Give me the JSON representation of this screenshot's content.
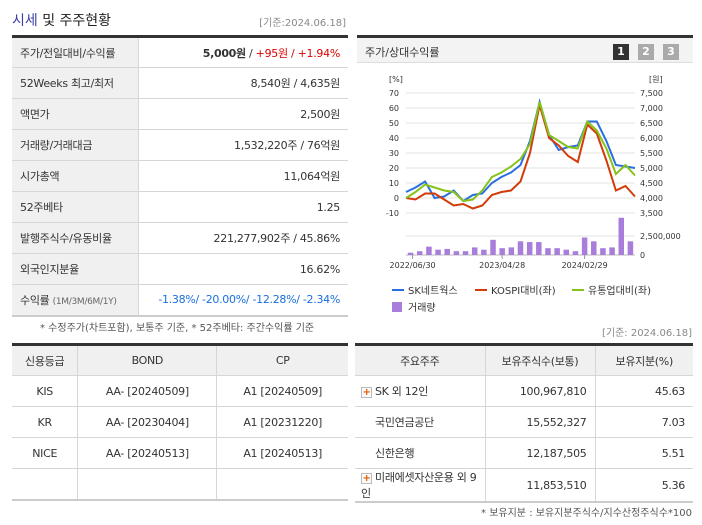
{
  "header": {
    "title_highlight": "시세",
    "title_rest": " 및 주주현황",
    "as_of": "[기준:2024.06.18]"
  },
  "quote": {
    "rows": [
      {
        "label": "주가/전일대비/수익률"
      },
      {
        "label": "52Weeks 최고/최저",
        "value": "8,540원 / 4,635원"
      },
      {
        "label": "액면가",
        "value": "2,500원"
      },
      {
        "label": "거래량/거래대금",
        "value": "1,532,220주 / 76억원"
      },
      {
        "label": "시가총액",
        "value": "11,064억원"
      },
      {
        "label": "52주베타",
        "value": "1.25"
      },
      {
        "label": "발행주식수/유동비율",
        "value": "221,277,902주 / 45.86%"
      },
      {
        "label": "외국인지분율",
        "value": "16.62%"
      },
      {
        "label": "수익률",
        "sub": "(1M/3M/6M/1Y)",
        "value": "-1.38%/ -20.00%/ -12.28%/ -2.34%"
      }
    ],
    "price": "5,000원",
    "change": "+95원",
    "pct": "+1.94%"
  },
  "chart_panel": {
    "title": "주가/상대수익률",
    "pages": [
      "1",
      "2",
      "3"
    ],
    "active_page": "1"
  },
  "chart_data": {
    "type": "line",
    "x_ticks": [
      "2022/06/30",
      "2023/04/28",
      "2024/02/29"
    ],
    "y_left": {
      "unit": "[%]",
      "ticks": [
        70,
        60,
        50,
        40,
        30,
        20,
        10,
        0,
        -10
      ],
      "range": [
        -10,
        70
      ]
    },
    "y_right": {
      "unit": "[원]",
      "ticks": [
        "7,500",
        "7,000",
        "6,500",
        "6,000",
        "5,500",
        "5,000",
        "4,500",
        "4,000",
        "3,500"
      ],
      "range": [
        3500,
        7500
      ]
    },
    "volume_axis": {
      "ticks": [
        "2,500,000",
        "0"
      ]
    },
    "series": [
      {
        "name": "SK네트웍스",
        "color": "#2a6fe0",
        "values": [
          4,
          7,
          11,
          0,
          1,
          5,
          -2,
          2,
          3,
          10,
          14,
          17,
          22,
          38,
          64,
          42,
          32,
          34,
          35,
          51,
          51,
          38,
          22,
          21,
          20
        ]
      },
      {
        "name": "KOSPI대비(좌)",
        "color": "#d23c0a",
        "values": [
          0,
          -1,
          3,
          3,
          -1,
          -5,
          -4,
          -7,
          -5,
          2,
          4,
          5,
          11,
          30,
          62,
          40,
          35,
          28,
          24,
          49,
          43,
          25,
          5,
          8,
          1
        ]
      },
      {
        "name": "유통업대비(좌)",
        "color": "#86c21a",
        "values": [
          0,
          4,
          9,
          7,
          5,
          4,
          -2,
          -1,
          5,
          14,
          17,
          21,
          26,
          36,
          64,
          42,
          38,
          34,
          33,
          51,
          45,
          33,
          16,
          22,
          15
        ]
      }
    ],
    "volume": {
      "name": "거래량",
      "color": "#a87ddc",
      "values": [
        300000,
        500000,
        1100000,
        700000,
        800000,
        500000,
        500000,
        1000000,
        700000,
        2000000,
        900000,
        1000000,
        1800000,
        1700000,
        1700000,
        900000,
        900000,
        700000,
        500000,
        2300000,
        1800000,
        900000,
        1000000,
        4900000,
        1800000
      ]
    }
  },
  "chart_notes": "* 수정주가(차트포함), 보통주 기준, * 52주베타: 주간수익률 기준",
  "credit": {
    "headers": [
      "신용등급",
      "BOND",
      "CP"
    ],
    "rows": [
      [
        "KIS",
        "AA-  [20240509]",
        "A1  [20240509]"
      ],
      [
        "KR",
        "AA-  [20230404]",
        "A1  [20231220]"
      ],
      [
        "NICE",
        "AA-  [20240513]",
        "A1  [20240513]"
      ],
      [
        "",
        "",
        ""
      ]
    ]
  },
  "holders": {
    "as_of": "[기준: 2024.06.18]",
    "headers": [
      "주요주주",
      "보유주식수(보통)",
      "보유지분(%)"
    ],
    "rows": [
      [
        "SK 외 12인",
        "100,967,810",
        "45.63"
      ],
      [
        "국민연금공단",
        "15,552,327",
        "7.03"
      ],
      [
        "신한은행",
        "12,187,505",
        "5.51"
      ],
      [
        "미래에셋자산운용 외 9인",
        "11,853,510",
        "5.36"
      ]
    ],
    "note": "* 보유지분 : 보유지분주식수/지수산정주식수*100"
  }
}
